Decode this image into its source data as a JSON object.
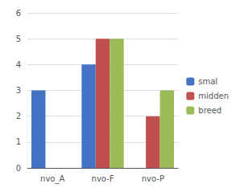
{
  "chart_data": {
    "type": "bar",
    "categories": [
      "nvo_A",
      "nvo-F",
      "nvo-P"
    ],
    "series": [
      {
        "name": "smal",
        "color": "#4472c4",
        "values": [
          3,
          4,
          0
        ]
      },
      {
        "name": "midden",
        "color": "#c0504d",
        "values": [
          0,
          5,
          2
        ]
      },
      {
        "name": "breed",
        "color": "#9bbb59",
        "values": [
          0,
          5,
          3
        ]
      }
    ],
    "ylim": [
      0,
      6
    ],
    "yticks": [
      0,
      1,
      2,
      3,
      4,
      5,
      6
    ],
    "grid": true,
    "legend": "right"
  }
}
